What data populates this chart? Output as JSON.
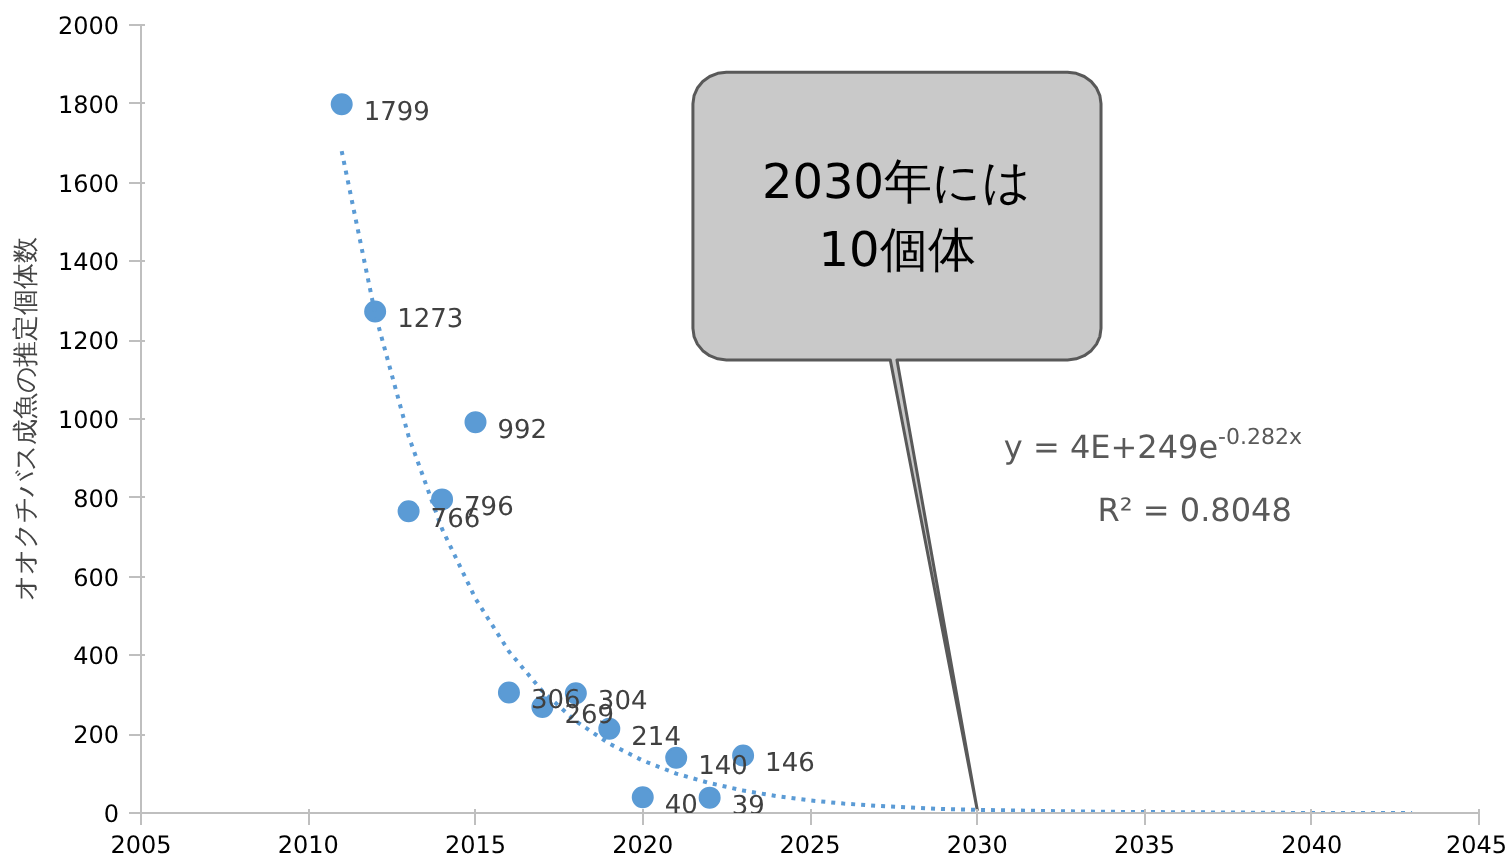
{
  "chart_data": {
    "type": "scatter",
    "ylabel": "オオクチバス成魚の推定個体数",
    "x": [
      2011,
      2012,
      2013,
      2014,
      2015,
      2016,
      2017,
      2018,
      2019,
      2020,
      2021,
      2022,
      2023
    ],
    "series": [
      {
        "color": "#5b9bd5",
        "values": [
          1799,
          1273,
          766,
          796,
          992,
          306,
          269,
          304,
          214,
          40,
          140,
          39,
          146
        ],
        "data_labels": true,
        "marker": "circle"
      },
      {
        "type": "line",
        "color": "#5b9bd5",
        "line_style": "dotted",
        "x": [
          2011,
          2012,
          2013,
          2014,
          2015,
          2016,
          2017,
          2018,
          2019,
          2020,
          2021,
          2022,
          2023,
          2024,
          2025,
          2026,
          2027,
          2028,
          2029,
          2030,
          2032,
          2034,
          2036,
          2038,
          2040,
          2043
        ],
        "values": [
          1680,
          1267,
          956,
          721,
          544,
          410,
          309,
          233,
          176,
          133,
          100,
          76,
          57,
          43,
          32,
          24,
          18,
          14,
          10,
          8,
          5,
          3,
          2,
          1,
          0,
          0
        ]
      }
    ],
    "xlim": [
      2005,
      2045
    ],
    "xticks": [
      2005,
      2010,
      2015,
      2020,
      2025,
      2030,
      2035,
      2040,
      2045
    ],
    "ylim": [
      0,
      2000
    ],
    "yticks": [
      0,
      200,
      400,
      600,
      800,
      1000,
      1200,
      1400,
      1600,
      1800,
      2000
    ],
    "grid": false,
    "annotations": [
      "2030年には\n10個体",
      "y = 4E+249e$^{-0.282x}$",
      "R² = 0.8048"
    ]
  }
}
